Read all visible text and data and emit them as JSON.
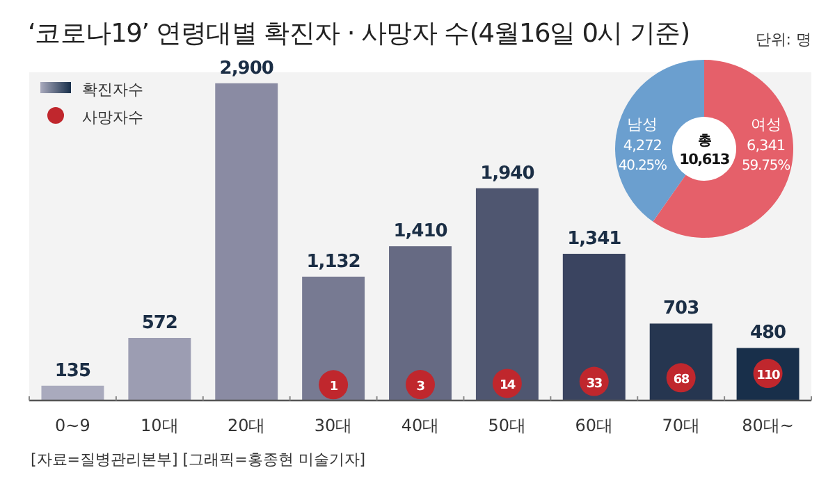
{
  "chart_data": [
    {
      "type": "bar",
      "title": "‘코로나19’ 연령대별 확진자 · 사망자 수(4월16일 0시 기준)",
      "categories": [
        "0~9",
        "10대",
        "20대",
        "30대",
        "40대",
        "50대",
        "60대",
        "70대",
        "80대~"
      ],
      "series": [
        {
          "name": "확진자수",
          "type": "bar",
          "color": "#4a5068",
          "colors": [
            "#a9aabd",
            "#9c9db2",
            "#8a8ba3",
            "#777a92",
            "#666a83",
            "#4f5670",
            "#3a4460",
            "#263650",
            "#182f4a"
          ],
          "values": [
            135,
            572,
            2900,
            1132,
            1410,
            1940,
            1341,
            703,
            480
          ],
          "value_labels": [
            "135",
            "572",
            "2,900",
            "1,132",
            "1,410",
            "1,940",
            "1,341",
            "703",
            "480"
          ]
        },
        {
          "name": "사망자수",
          "type": "scatter",
          "axis": "y2",
          "color": "#c0272d",
          "values": [
            null,
            null,
            null,
            1,
            3,
            14,
            33,
            68,
            110
          ],
          "value_labels": [
            null,
            null,
            null,
            "1",
            "3",
            "14",
            "33",
            "68",
            "110"
          ]
        }
      ],
      "ylim": [
        0,
        3000
      ],
      "y2lim": [
        -150,
        3000
      ],
      "tick_labels": "x",
      "grid": false,
      "legend": "top left",
      "annotations": [
        "단위: 명",
        "[자료=질병관리본부] [그래픽=홍종현 미술기자]"
      ]
    },
    {
      "type": "donut",
      "categories": [
        "남성",
        "여성"
      ],
      "values": [
        4272,
        6341
      ],
      "colors": [
        "#6b9fcf",
        "#e5606a"
      ],
      "value_labels": [
        "4,272",
        "6,341"
      ],
      "annotations": [
        "총",
        "10,613",
        {
          "text": "40.25%",
          "x": "남성"
        },
        {
          "text": "59.75%",
          "x": "여성"
        }
      ]
    }
  ]
}
